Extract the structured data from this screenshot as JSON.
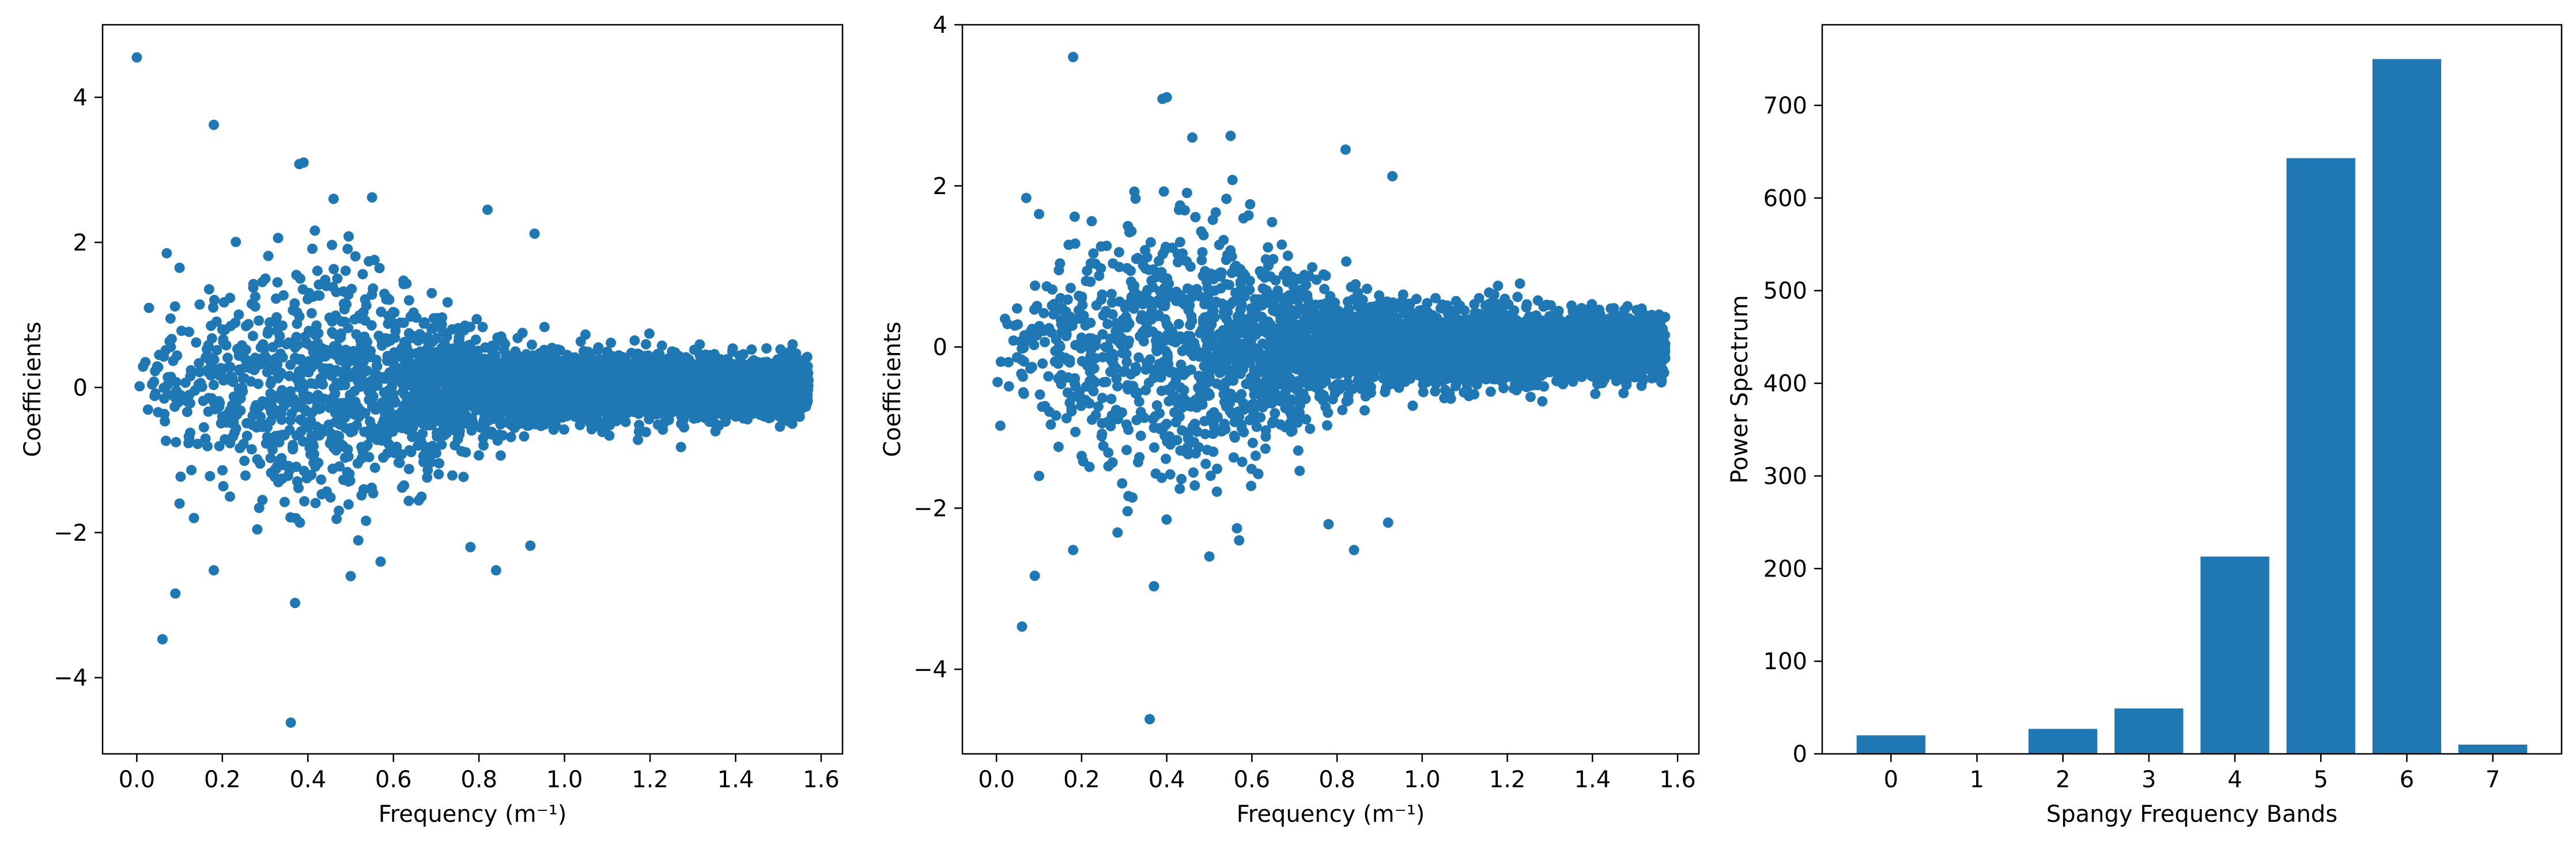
{
  "chart_data": [
    {
      "type": "scatter",
      "xlabel": "Frequency (m⁻¹)",
      "ylabel": "Coefficients",
      "xlim": [
        -0.08,
        1.65
      ],
      "ylim": [
        -5.05,
        5.0
      ],
      "xticks": [
        "0.0",
        "0.2",
        "0.4",
        "0.6",
        "0.8",
        "1.0",
        "1.2",
        "1.4",
        "1.6"
      ],
      "yticks": [
        "−4",
        "−2",
        "0",
        "2",
        "4"
      ],
      "color": "#1f77b4",
      "outliers": [
        [
          0.0,
          4.55
        ],
        [
          0.18,
          3.62
        ],
        [
          0.38,
          3.08
        ],
        [
          0.39,
          3.1
        ],
        [
          0.55,
          2.62
        ],
        [
          0.46,
          2.6
        ],
        [
          0.82,
          2.45
        ],
        [
          0.93,
          2.12
        ],
        [
          0.06,
          -3.47
        ],
        [
          0.09,
          -2.84
        ],
        [
          0.18,
          -2.52
        ],
        [
          0.37,
          -2.97
        ],
        [
          0.36,
          -4.62
        ],
        [
          0.5,
          -2.6
        ],
        [
          0.84,
          -2.52
        ],
        [
          0.1,
          -1.6
        ],
        [
          0.02,
          0.35
        ],
        [
          0.04,
          0.08
        ],
        [
          0.07,
          1.85
        ],
        [
          0.1,
          1.65
        ],
        [
          0.05,
          0.28
        ],
        [
          0.78,
          -2.2
        ],
        [
          0.57,
          -2.4
        ],
        [
          0.92,
          -2.18
        ]
      ],
      "sampled_cloud": {
        "points": 4200,
        "x_range": [
          0.0,
          1.571
        ],
        "note": "random"
      }
    },
    {
      "type": "scatter",
      "xlabel": "Frequency (m⁻¹)",
      "ylabel": "Coefficients",
      "xlim": [
        -0.08,
        1.65
      ],
      "ylim": [
        -5.05,
        4.0
      ],
      "xticks": [
        "0.0",
        "0.2",
        "0.4",
        "0.6",
        "0.8",
        "1.0",
        "1.2",
        "1.4",
        "1.6"
      ],
      "yticks": [
        "−4",
        "−2",
        "0",
        "2",
        "4"
      ],
      "color": "#1f77b4",
      "outliers": [
        [
          0.18,
          3.6
        ],
        [
          0.39,
          3.08
        ],
        [
          0.4,
          3.1
        ],
        [
          0.55,
          2.62
        ],
        [
          0.46,
          2.6
        ],
        [
          0.82,
          2.45
        ],
        [
          0.93,
          2.12
        ],
        [
          0.06,
          -3.47
        ],
        [
          0.09,
          -2.84
        ],
        [
          0.18,
          -2.52
        ],
        [
          0.37,
          -2.97
        ],
        [
          0.36,
          -4.62
        ],
        [
          0.5,
          -2.6
        ],
        [
          0.84,
          -2.52
        ],
        [
          0.1,
          -1.6
        ],
        [
          0.02,
          0.35
        ],
        [
          0.04,
          0.08
        ],
        [
          0.07,
          1.85
        ],
        [
          0.1,
          1.65
        ],
        [
          0.05,
          0.28
        ],
        [
          0.78,
          -2.2
        ],
        [
          0.57,
          -2.4
        ],
        [
          0.92,
          -2.18
        ]
      ],
      "sampled_cloud": {
        "points": 4200,
        "x_range": [
          0.0,
          1.571
        ],
        "note": "random"
      }
    },
    {
      "type": "bar",
      "categories": [
        "0",
        "1",
        "2",
        "3",
        "4",
        "5",
        "6",
        "7"
      ],
      "values": [
        20,
        0,
        27,
        49,
        213,
        643,
        750,
        10
      ],
      "xlabel": "Spangy Frequency Bands",
      "ylabel": "Power Spectrum",
      "xlim": [
        -0.8,
        7.8
      ],
      "ylim": [
        0,
        787
      ],
      "yticks": [
        "0",
        "100",
        "200",
        "300",
        "400",
        "500",
        "600",
        "700"
      ],
      "color": "#1f77b4"
    }
  ]
}
